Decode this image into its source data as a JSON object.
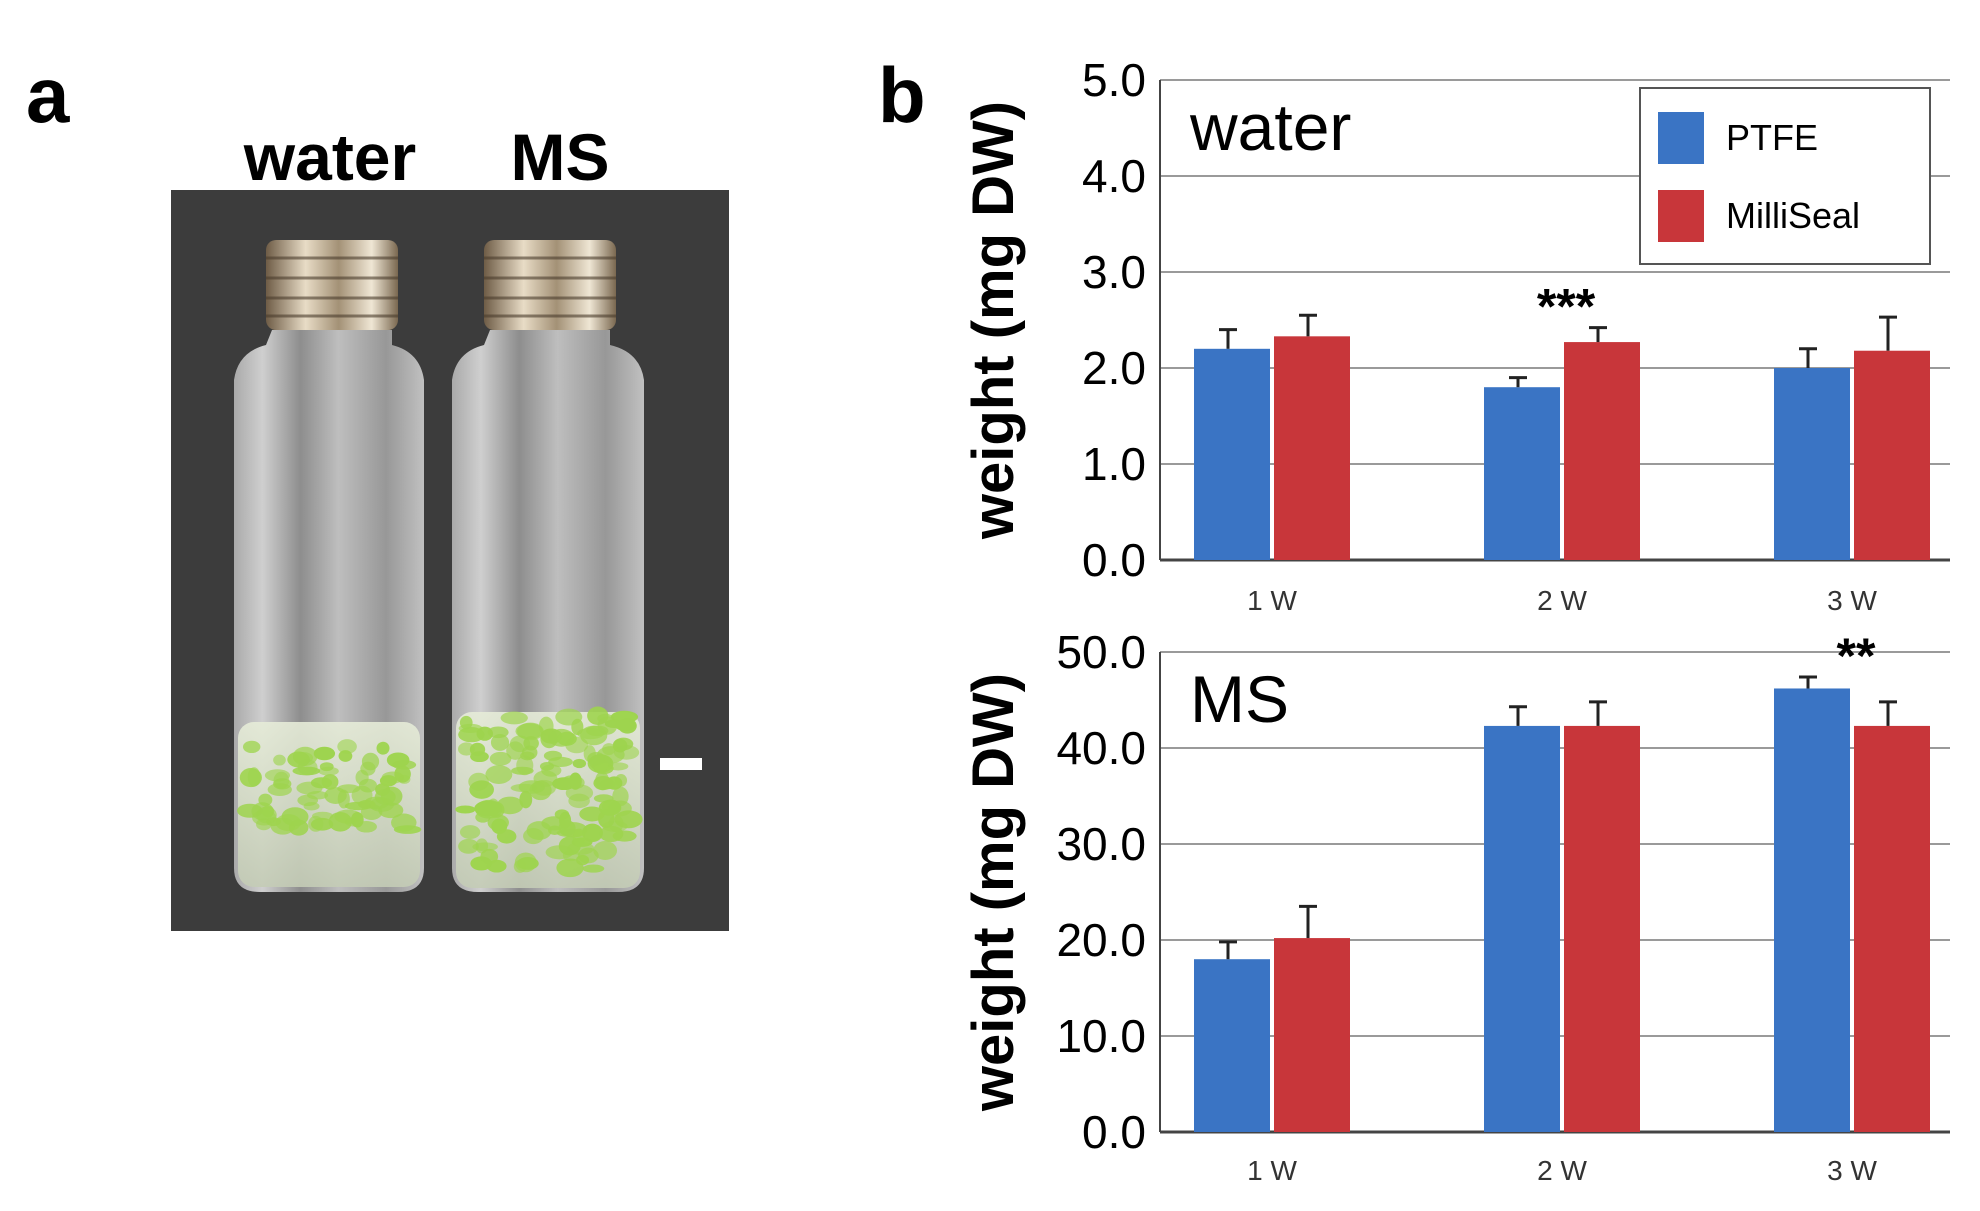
{
  "panel_a": {
    "letter": "a",
    "label_left": "water",
    "label_right": "MS"
  },
  "panel_b": {
    "letter": "b"
  },
  "colors": {
    "ptfe": "#3a74c4",
    "milliseal": "#c8363a",
    "grid": "#9a9a9a",
    "photo_bg": "#3c3c3c",
    "seedling": "#9ed44e"
  },
  "legend": {
    "placement": "top-right",
    "items": [
      "PTFE",
      "MilliSeal"
    ]
  },
  "chart_data": [
    {
      "type": "bar",
      "inset_label": "water",
      "ylabel": "weight (mg DW)",
      "ylim": [
        0,
        5
      ],
      "yticks": [
        "0.0",
        "1.0",
        "2.0",
        "3.0",
        "4.0",
        "5.0"
      ],
      "grid": true,
      "categories": [
        "1 W",
        "2 W",
        "3 W"
      ],
      "series": [
        {
          "name": "PTFE",
          "values": [
            2.2,
            1.8,
            2.0
          ],
          "errors": [
            0.2,
            0.1,
            0.2
          ]
        },
        {
          "name": "MilliSeal",
          "values": [
            2.33,
            2.27,
            2.18
          ],
          "errors": [
            0.22,
            0.15,
            0.35
          ]
        }
      ],
      "annotations": [
        {
          "category": "2 W",
          "text": "***"
        }
      ]
    },
    {
      "type": "bar",
      "inset_label": "MS",
      "ylabel": "weight (mg DW)",
      "ylim": [
        0,
        50
      ],
      "yticks": [
        "0.0",
        "10.0",
        "20.0",
        "30.0",
        "40.0",
        "50.0"
      ],
      "grid": true,
      "categories": [
        "1 W",
        "2 W",
        "3 W"
      ],
      "series": [
        {
          "name": "PTFE",
          "values": [
            18.0,
            42.3,
            46.2
          ],
          "errors": [
            1.8,
            2.0,
            1.2
          ]
        },
        {
          "name": "MilliSeal",
          "values": [
            20.2,
            42.3,
            42.3
          ],
          "errors": [
            3.3,
            2.5,
            2.5
          ]
        }
      ],
      "annotations": [
        {
          "category": "3 W",
          "text": "**"
        }
      ]
    }
  ]
}
